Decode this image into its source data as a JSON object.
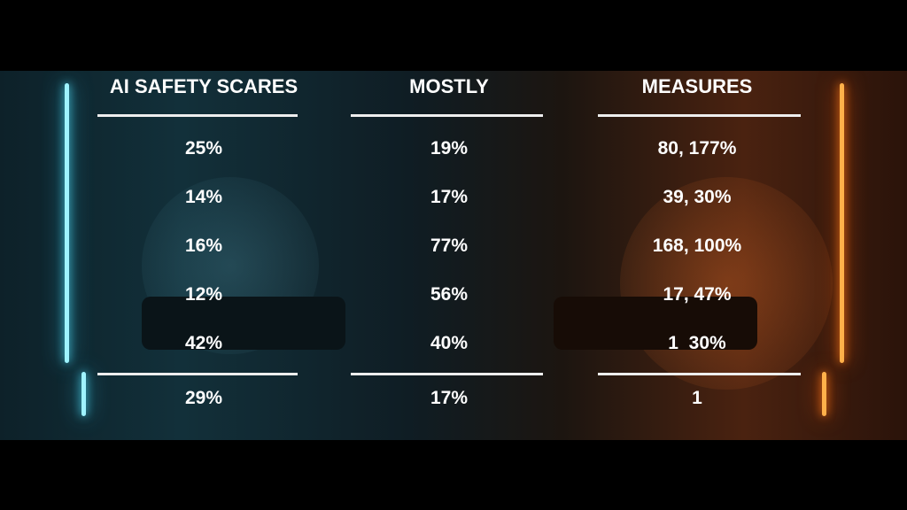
{
  "table": {
    "headers": [
      "AI SAFETY SCARES",
      "MOSTLY",
      "MEASURES"
    ],
    "rows": [
      [
        "25%",
        "19%",
        "80, 177%"
      ],
      [
        "14%",
        "17%",
        "39, 30%"
      ],
      [
        "16%",
        "77%",
        "168, 100%"
      ],
      [
        "12%",
        "56%",
        "17, 47%"
      ],
      [
        "42%",
        "40%",
        "1  30%"
      ]
    ],
    "footer": [
      "29%",
      "17%",
      "1"
    ]
  }
}
